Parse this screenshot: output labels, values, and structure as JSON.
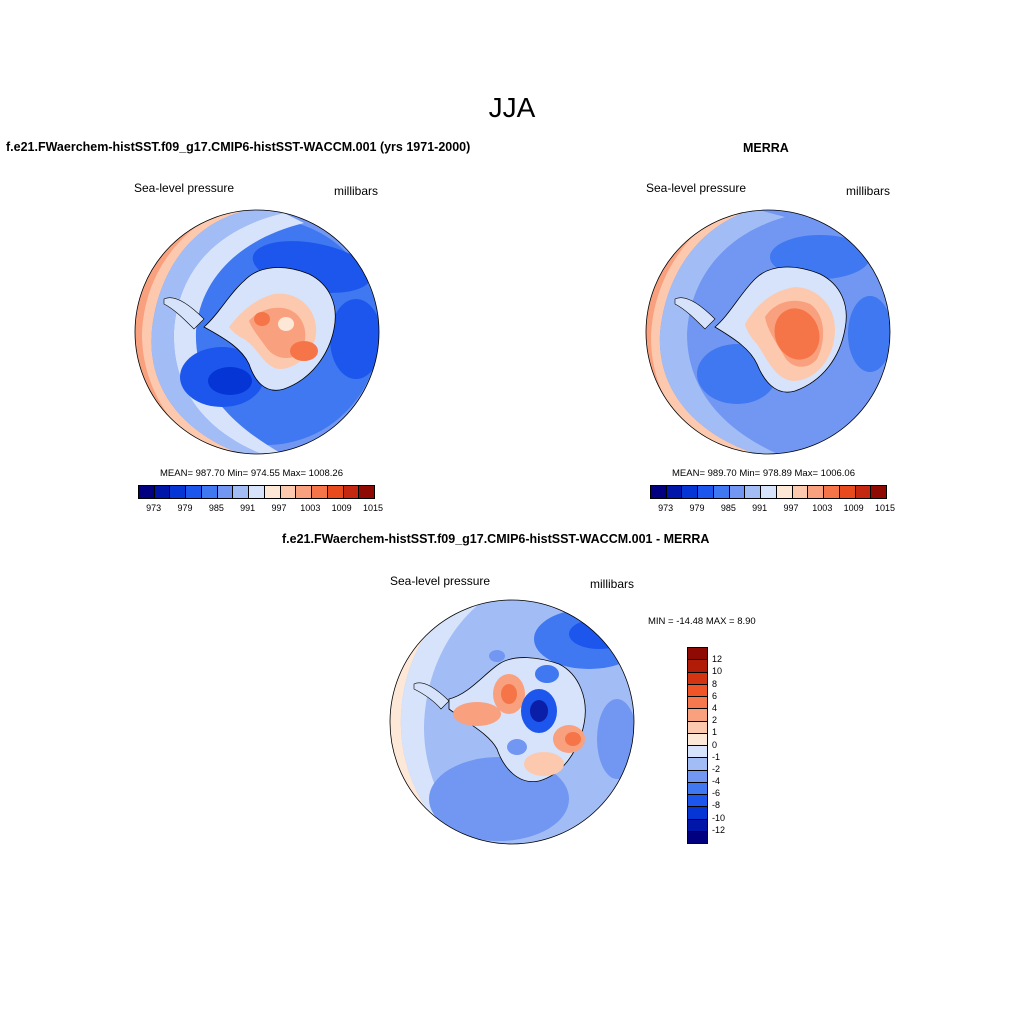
{
  "figure": {
    "season": "JJA",
    "variable": "Sea-level pressure",
    "units": "millibars"
  },
  "panels": {
    "model": {
      "title": "f.e21.FWaerchem-histSST.f09_g17.CMIP6-histSST-WACCM.001 (yrs 1971-2000)",
      "variable": "Sea-level pressure",
      "units": "millibars",
      "stats": "MEAN= 987.70  Min= 974.55  Max= 1008.26"
    },
    "obs": {
      "title": "MERRA",
      "variable": "Sea-level pressure",
      "units": "millibars",
      "stats": "MEAN= 989.70  Min= 978.89  Max= 1006.06"
    },
    "diff": {
      "title": "f.e21.FWaerchem-histSST.f09_g17.CMIP6-histSST-WACCM.001 - MERRA",
      "variable": "Sea-level pressure",
      "units": "millibars",
      "stats": "MIN = -14.48 MAX =   8.90"
    }
  },
  "colorbars": {
    "absolute": {
      "colors": [
        "#000080",
        "#0016a8",
        "#0535d4",
        "#1c56ec",
        "#3f78f0",
        "#7197f2",
        "#a2bcf5",
        "#d6e3fb",
        "#fde8d8",
        "#fcc9ae",
        "#f9a07e",
        "#f57548",
        "#e84a1e",
        "#c42810",
        "#8f0a02"
      ],
      "labels": [
        "973",
        "979",
        "985",
        "991",
        "997",
        "1003",
        "1009",
        "1015"
      ]
    },
    "difference": {
      "colors": [
        "#8f0a02",
        "#b01c08",
        "#d33512",
        "#ef5527",
        "#f6784e",
        "#f9a07e",
        "#fcc9ae",
        "#fde8d8",
        "#d6e3fb",
        "#a2bcf5",
        "#7197f2",
        "#3f78f0",
        "#1c56ec",
        "#0535d4",
        "#0016a8",
        "#000080"
      ],
      "labels": [
        "12",
        "10",
        "8",
        "6",
        "4",
        "2",
        "1",
        "0",
        "-1",
        "-2",
        "-4",
        "-6",
        "-8",
        "-10",
        "-12"
      ]
    }
  },
  "palette": {
    "deep_blue": "#1c4fe0",
    "mid_blue": "#3f78f0",
    "light_blue": "#7197f2",
    "pale_blue": "#a2bcf5",
    "very_pale_blue": "#d6e3fb",
    "cream": "#fde8d8",
    "peach": "#fcc9ae",
    "salmon": "#f9a07e",
    "orange": "#f57548",
    "navy": "#0a1ea8"
  }
}
